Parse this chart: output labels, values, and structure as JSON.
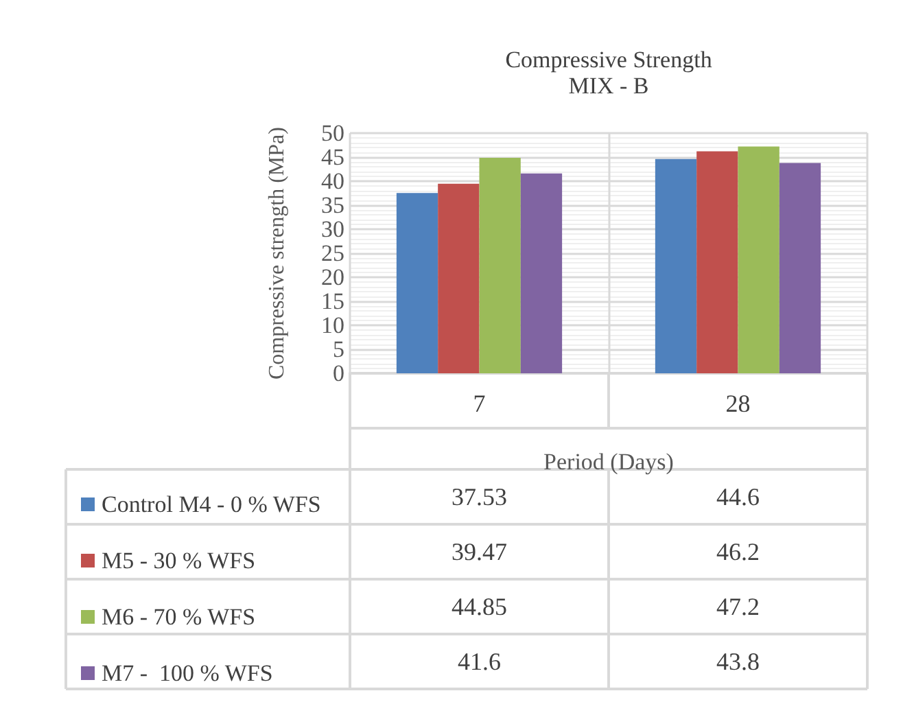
{
  "chart_data": {
    "type": "bar",
    "title": "Compressive Strength",
    "subtitle": "MIX - B",
    "xlabel": "Period (Days)",
    "ylabel": "Compressive strength (MPa)",
    "categories": [
      "7",
      "28"
    ],
    "series": [
      {
        "name": "Control M4 - 0 % WFS",
        "color": "#4f81bd",
        "values": [
          37.53,
          44.6
        ]
      },
      {
        "name": "M5 - 30 % WFS",
        "color": "#c0504d",
        "values": [
          39.47,
          46.2
        ]
      },
      {
        "name": "M6 - 70 % WFS",
        "color": "#9bbb59",
        "values": [
          44.85,
          47.2
        ]
      },
      {
        "name": "M7 -  100 % WFS",
        "color": "#8064a2",
        "values": [
          41.6,
          43.8
        ]
      }
    ],
    "ylim": [
      0,
      50
    ],
    "yticks": [
      0,
      5,
      10,
      15,
      20,
      25,
      30,
      35,
      40,
      45,
      50
    ],
    "grid": true,
    "legend": "bottom",
    "data_labels": true
  }
}
